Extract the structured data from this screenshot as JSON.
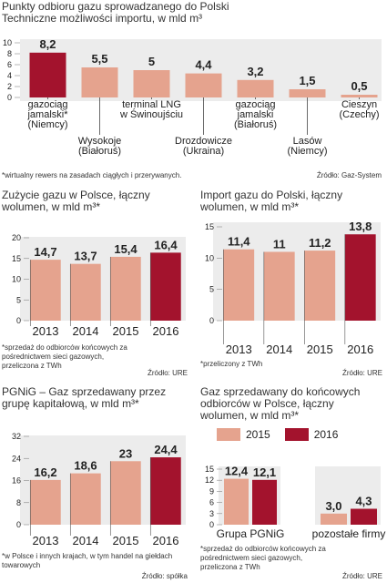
{
  "panels": {
    "p1": {
      "title": "Punkty odbioru gazu sprowadzanego do Polski",
      "subtitle": "Techniczne możliwości importu, w mld m³",
      "note": "*wirtualny rewers na zasadach ciągłych i przerywanych.",
      "source": "Źródło: Gaz-System"
    },
    "p2": {
      "title": "Zużycie gazu w Polsce, łączny wolumen, w mld m³*",
      "note": "*sprzedaż do odbiorców końcowych za pośrednictwem sieci gazowych, przeliczona z TWh",
      "source": "Źródło: URE"
    },
    "p3": {
      "title": "Import gazu do Polski, łączny wolumen, w mld m³*",
      "note": "*przeliczony z TWh",
      "source": "Źródło: URE"
    },
    "p4": {
      "title": "PGNiG – Gaz sprzedawany przez grupę kapitałową, w mld m³*",
      "note": "*w Polsce i innych krajach, w tym handel na giełdach towarowych",
      "source": "Źródło: spółka"
    },
    "p5": {
      "title": "Gaz sprzedawany do końcowych odbiorców w Polsce, łączny wolumen, w mld m³*",
      "note": "*sprzedaż do odbiorców końcowych za pośrednictwem sieci gazowych, przeliczona z TWh",
      "source": "Źródło: URE",
      "legend_2015": "2015",
      "legend_2016": "2016"
    }
  },
  "colors": {
    "pink": "#e5a38e",
    "red": "#a3132d",
    "plot_bg": "#ececec"
  },
  "chart_data": [
    {
      "id": "c1",
      "type": "bar",
      "title": "Punkty odbioru gazu sprowadzanego do Polski",
      "subtitle": "Techniczne możliwości importu, w mld m³",
      "categories": [
        "gazociąg jamalski* (Niemcy)",
        "Wysokoje (Białoruś)",
        "terminal LNG w Świnoujściu",
        "Drozdowicze (Ukraina)",
        "gazociąg jamalski (Białoruś)",
        "Lasów (Niemcy)",
        "Cieszyn (Czechy)"
      ],
      "category_lines": [
        [
          "gazociąg",
          "jamalski*",
          "(Niemcy)"
        ],
        [
          "Wysokoje",
          "(Białoruś)"
        ],
        [
          "terminal LNG",
          "w Świnoujściu"
        ],
        [
          "Drozdowicze",
          "(Ukraina)"
        ],
        [
          "gazociąg",
          "jamalski",
          "(Białoruś)"
        ],
        [
          "Lasów",
          "(Niemcy)"
        ],
        [
          "Cieszyn",
          "(Czechy)"
        ]
      ],
      "label_pos": [
        "above",
        "below",
        "above",
        "below",
        "above",
        "below",
        "above"
      ],
      "values": [
        8.2,
        5.5,
        5,
        4.4,
        3.2,
        1.5,
        0.5
      ],
      "labels": [
        "8,2",
        "5,5",
        "5",
        "4,4",
        "3,2",
        "1,5",
        "0,5"
      ],
      "highlight": [
        true,
        false,
        false,
        false,
        false,
        false,
        false
      ],
      "ylim": [
        0,
        10
      ],
      "yticks": [
        "0",
        "2",
        "4",
        "6",
        "8",
        "10"
      ]
    },
    {
      "id": "c2",
      "type": "bar",
      "categories": [
        "2013",
        "2014",
        "2015",
        "2016"
      ],
      "values": [
        14.7,
        13.7,
        15.4,
        16.4
      ],
      "labels": [
        "14,7",
        "13,7",
        "15,4",
        "16,4"
      ],
      "highlight": [
        false,
        false,
        false,
        true
      ],
      "ylim": [
        0,
        20
      ],
      "yticks": [
        "0",
        "5",
        "10",
        "15",
        "20"
      ]
    },
    {
      "id": "c3",
      "type": "bar",
      "categories": [
        "2013",
        "2014",
        "2015",
        "2016"
      ],
      "values": [
        11.4,
        11,
        11.2,
        13.8
      ],
      "labels": [
        "11,4",
        "11",
        "11,2",
        "13,8"
      ],
      "highlight": [
        false,
        false,
        false,
        true
      ],
      "ylim": [
        0,
        15
      ],
      "yticks": [
        "0",
        "5",
        "10",
        "15"
      ]
    },
    {
      "id": "c4",
      "type": "bar",
      "categories": [
        "2013",
        "2014",
        "2015",
        "2016"
      ],
      "values": [
        16.2,
        18.6,
        23,
        24.4
      ],
      "labels": [
        "16,2",
        "18,6",
        "23",
        "24,4"
      ],
      "highlight": [
        false,
        false,
        false,
        true
      ],
      "ylim": [
        0,
        32
      ],
      "yticks": [
        "0",
        "8",
        "16",
        "24",
        "32"
      ]
    },
    {
      "id": "c5",
      "type": "bar",
      "categories": [
        "Grupa PGNiG",
        "pozostałe firmy"
      ],
      "series": [
        {
          "name": "2015",
          "values": [
            12.4,
            3.0
          ],
          "labels": [
            "12,4",
            "3,0"
          ]
        },
        {
          "name": "2016",
          "values": [
            12.1,
            4.3
          ],
          "labels": [
            "12,1",
            "4,3"
          ]
        }
      ],
      "ylim": [
        0,
        15
      ],
      "yticks": [
        "0",
        "3",
        "6",
        "9",
        "12",
        "15"
      ]
    }
  ]
}
